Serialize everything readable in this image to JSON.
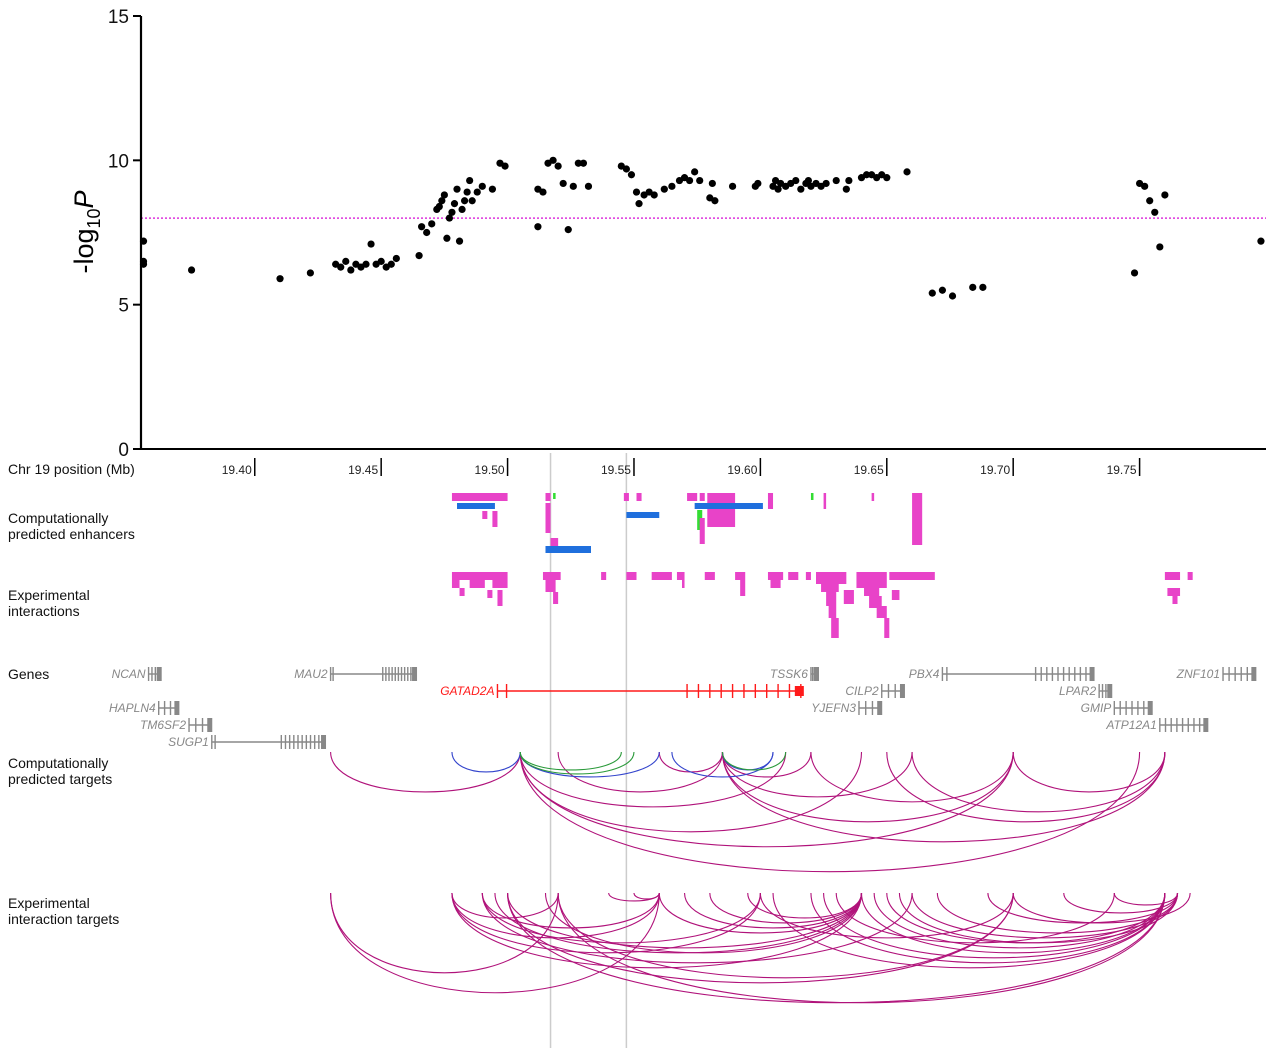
{
  "colors": {
    "point": "#000000",
    "threshold": "#dd33dd",
    "enhancer_pink": "#e843c8",
    "enhancer_blue": "#1f6fdd",
    "enhancer_green": "#33dd33",
    "gene_grey": "#888888",
    "gene_highlight": "#ff1a1a",
    "arc_magenta": "#b0127a",
    "arc_blue": "#3344cc",
    "arc_green": "#2a9a3a",
    "guide": "#cccccc"
  },
  "chart_data": {
    "type": "scatter",
    "ylabel_main": "-log",
    "ylabel_sub": "10",
    "ylabel_var": "P",
    "xlabel": "Chr 19 position (Mb)",
    "ylim": [
      0,
      15
    ],
    "xlim": [
      19.355,
      19.8
    ],
    "yticks": [
      "0",
      "5",
      "10",
      "15"
    ],
    "xticks": [
      "19.40",
      "19.45",
      "19.50",
      "19.55",
      "19.60",
      "19.65",
      "19.70",
      "19.75"
    ],
    "threshold": 8.0,
    "points": [
      [
        19.356,
        7.2
      ],
      [
        19.356,
        6.4
      ],
      [
        19.356,
        6.5
      ],
      [
        19.375,
        6.2
      ],
      [
        19.41,
        5.9
      ],
      [
        19.422,
        6.1
      ],
      [
        19.432,
        6.4
      ],
      [
        19.434,
        6.3
      ],
      [
        19.436,
        6.5
      ],
      [
        19.438,
        6.2
      ],
      [
        19.44,
        6.4
      ],
      [
        19.442,
        6.3
      ],
      [
        19.444,
        6.4
      ],
      [
        19.446,
        7.1
      ],
      [
        19.448,
        6.4
      ],
      [
        19.45,
        6.5
      ],
      [
        19.452,
        6.3
      ],
      [
        19.454,
        6.4
      ],
      [
        19.456,
        6.6
      ],
      [
        19.465,
        6.7
      ],
      [
        19.466,
        7.7
      ],
      [
        19.468,
        7.5
      ],
      [
        19.47,
        7.8
      ],
      [
        19.472,
        8.3
      ],
      [
        19.473,
        8.4
      ],
      [
        19.474,
        8.6
      ],
      [
        19.475,
        8.8
      ],
      [
        19.476,
        7.3
      ],
      [
        19.477,
        8.0
      ],
      [
        19.478,
        8.2
      ],
      [
        19.479,
        8.5
      ],
      [
        19.48,
        9.0
      ],
      [
        19.481,
        7.2
      ],
      [
        19.482,
        8.3
      ],
      [
        19.483,
        8.6
      ],
      [
        19.484,
        8.9
      ],
      [
        19.485,
        9.3
      ],
      [
        19.486,
        8.6
      ],
      [
        19.488,
        8.9
      ],
      [
        19.49,
        9.1
      ],
      [
        19.494,
        9.0
      ],
      [
        19.497,
        9.9
      ],
      [
        19.499,
        9.8
      ],
      [
        19.512,
        7.7
      ],
      [
        19.512,
        9.0
      ],
      [
        19.514,
        8.9
      ],
      [
        19.516,
        9.9
      ],
      [
        19.518,
        10.0
      ],
      [
        19.52,
        9.8
      ],
      [
        19.522,
        9.2
      ],
      [
        19.524,
        7.6
      ],
      [
        19.526,
        9.1
      ],
      [
        19.528,
        9.9
      ],
      [
        19.53,
        9.9
      ],
      [
        19.532,
        9.1
      ],
      [
        19.545,
        9.8
      ],
      [
        19.547,
        9.7
      ],
      [
        19.549,
        9.5
      ],
      [
        19.551,
        8.9
      ],
      [
        19.552,
        8.5
      ],
      [
        19.554,
        8.8
      ],
      [
        19.556,
        8.9
      ],
      [
        19.558,
        8.8
      ],
      [
        19.562,
        9.0
      ],
      [
        19.565,
        9.1
      ],
      [
        19.568,
        9.3
      ],
      [
        19.57,
        9.4
      ],
      [
        19.572,
        9.3
      ],
      [
        19.574,
        9.6
      ],
      [
        19.576,
        9.3
      ],
      [
        19.58,
        8.7
      ],
      [
        19.581,
        9.2
      ],
      [
        19.582,
        8.6
      ],
      [
        19.589,
        9.1
      ],
      [
        19.598,
        9.1
      ],
      [
        19.599,
        9.2
      ],
      [
        19.605,
        9.1
      ],
      [
        19.606,
        9.3
      ],
      [
        19.607,
        9.0
      ],
      [
        19.608,
        9.2
      ],
      [
        19.61,
        9.1
      ],
      [
        19.612,
        9.2
      ],
      [
        19.614,
        9.3
      ],
      [
        19.616,
        9.0
      ],
      [
        19.618,
        9.2
      ],
      [
        19.619,
        9.3
      ],
      [
        19.62,
        9.1
      ],
      [
        19.622,
        9.2
      ],
      [
        19.624,
        9.1
      ],
      [
        19.626,
        9.2
      ],
      [
        19.63,
        9.3
      ],
      [
        19.634,
        9.0
      ],
      [
        19.635,
        9.3
      ],
      [
        19.64,
        9.4
      ],
      [
        19.642,
        9.5
      ],
      [
        19.644,
        9.5
      ],
      [
        19.646,
        9.4
      ],
      [
        19.648,
        9.5
      ],
      [
        19.65,
        9.4
      ],
      [
        19.658,
        9.6
      ],
      [
        19.668,
        5.4
      ],
      [
        19.672,
        5.5
      ],
      [
        19.676,
        5.3
      ],
      [
        19.684,
        5.6
      ],
      [
        19.688,
        5.6
      ],
      [
        19.748,
        6.1
      ],
      [
        19.75,
        9.2
      ],
      [
        19.752,
        9.1
      ],
      [
        19.754,
        8.6
      ],
      [
        19.756,
        8.2
      ],
      [
        19.758,
        7.0
      ],
      [
        19.76,
        8.8
      ],
      [
        19.798,
        7.2
      ]
    ]
  },
  "tracks": {
    "enhancers_label_1": "Computationally",
    "enhancers_label_2": "predicted enhancers",
    "interactions_label_1": "Experimental",
    "interactions_label_2": "interactions",
    "genes_label": "Genes",
    "pred_targets_label_1": "Computationally",
    "pred_targets_label_2": "predicted targets",
    "exp_targets_label_1": "Experimental",
    "exp_targets_label_2": "interaction targets"
  },
  "genes": [
    {
      "name": "NCAN",
      "start": 19.358,
      "end": 19.362,
      "row": 0,
      "highlight": false
    },
    {
      "name": "MAU2",
      "start": 19.43,
      "end": 19.463,
      "row": 0,
      "highlight": false
    },
    {
      "name": "GATAD2A",
      "start": 19.496,
      "end": 19.616,
      "row": 1,
      "highlight": true
    },
    {
      "name": "TSSK6",
      "start": 19.62,
      "end": 19.622,
      "row": 0,
      "highlight": false
    },
    {
      "name": "CILP2",
      "start": 19.648,
      "end": 19.656,
      "row": 1,
      "highlight": false
    },
    {
      "name": "YJEFN3",
      "start": 19.639,
      "end": 19.647,
      "row": 2,
      "highlight": false
    },
    {
      "name": "PBX4",
      "start": 19.672,
      "end": 19.731,
      "row": 0,
      "highlight": false
    },
    {
      "name": "LPAR2",
      "start": 19.734,
      "end": 19.738,
      "row": 1,
      "highlight": false
    },
    {
      "name": "GMIP",
      "start": 19.74,
      "end": 19.754,
      "row": 2,
      "highlight": false
    },
    {
      "name": "ATP12A1",
      "start": 19.758,
      "end": 19.776,
      "row": 3,
      "highlight": false
    },
    {
      "name": "ZNF101",
      "start": 19.783,
      "end": 19.795,
      "row": 0,
      "highlight": false
    },
    {
      "name": "HAPLN4",
      "start": 19.362,
      "end": 19.369,
      "row": 2,
      "highlight": false
    },
    {
      "name": "TM6SF2",
      "start": 19.374,
      "end": 19.382,
      "row": 3,
      "highlight": false
    },
    {
      "name": "SUGP1",
      "start": 19.383,
      "end": 19.427,
      "row": 4,
      "highlight": false
    }
  ]
}
